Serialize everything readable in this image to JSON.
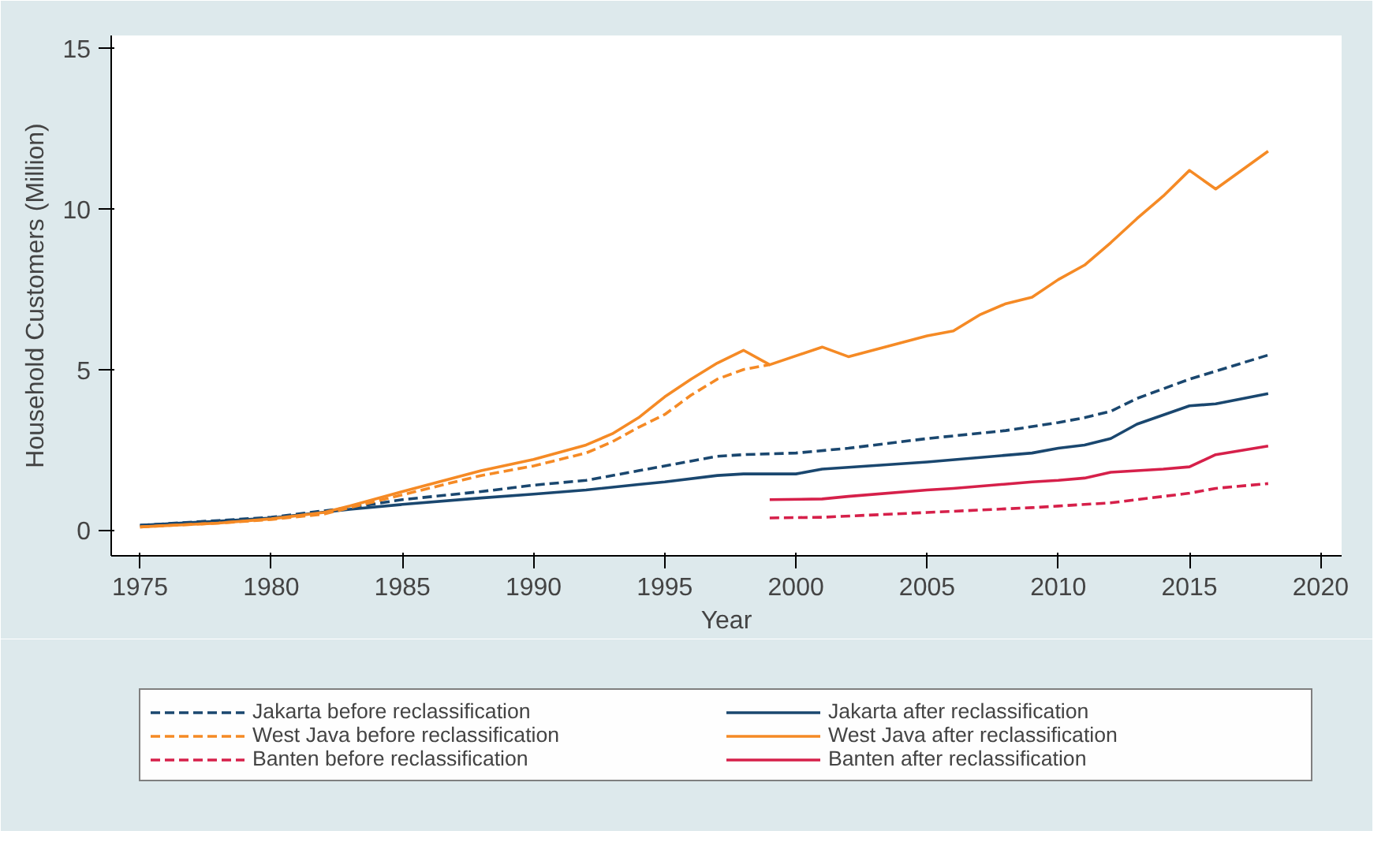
{
  "chart_data": {
    "type": "line",
    "xlabel": "Year",
    "ylabel": "Household Customers (Million)",
    "xlim": [
      1973.9,
      2020.8
    ],
    "ylim": [
      -0.8,
      15.4
    ],
    "xticks": [
      1975,
      1980,
      1985,
      1990,
      1995,
      2000,
      2005,
      2010,
      2015,
      2020
    ],
    "yticks": [
      0,
      5,
      10,
      15
    ],
    "grid": false,
    "legend": "bottom",
    "series": [
      {
        "name": "Jakarta before reclassification",
        "color": "#1a476f",
        "line_style": "dashed",
        "x": [
          1975,
          1978,
          1980,
          1983,
          1985,
          1988,
          1990,
          1992,
          1994,
          1995,
          1997,
          1998,
          2000,
          2002,
          2005,
          2008,
          2010,
          2011,
          2012,
          2013,
          2015,
          2016,
          2018
        ],
        "values": [
          0.15,
          0.3,
          0.4,
          0.7,
          0.95,
          1.2,
          1.4,
          1.55,
          1.85,
          2.0,
          2.3,
          2.35,
          2.4,
          2.55,
          2.85,
          3.1,
          3.35,
          3.5,
          3.7,
          4.1,
          4.7,
          4.95,
          5.45
        ]
      },
      {
        "name": "Jakarta after reclassification",
        "color": "#1a476f",
        "line_style": "solid",
        "x": [
          1975,
          1978,
          1980,
          1983,
          1985,
          1988,
          1990,
          1992,
          1994,
          1995,
          1997,
          1998,
          2000,
          2001,
          2005,
          2009,
          2010,
          2011,
          2012,
          2013,
          2015,
          2016,
          2018
        ],
        "values": [
          0.15,
          0.28,
          0.38,
          0.65,
          0.8,
          1.0,
          1.12,
          1.25,
          1.42,
          1.5,
          1.7,
          1.75,
          1.75,
          1.9,
          2.12,
          2.4,
          2.55,
          2.65,
          2.85,
          3.3,
          3.87,
          3.93,
          4.25
        ]
      },
      {
        "name": "West Java before reclassification",
        "color": "#f58a25",
        "line_style": "dashed",
        "x": [
          1975,
          1978,
          1980,
          1982,
          1983,
          1985,
          1988,
          1990,
          1992,
          1993,
          1994,
          1995,
          1996,
          1997,
          1998,
          1999
        ],
        "values": [
          0.1,
          0.22,
          0.33,
          0.5,
          0.7,
          1.1,
          1.7,
          2.0,
          2.4,
          2.75,
          3.2,
          3.6,
          4.2,
          4.7,
          5.0,
          5.15
        ]
      },
      {
        "name": "West Java after reclassification",
        "color": "#f58a25",
        "line_style": "solid",
        "x": [
          1975,
          1978,
          1980,
          1982,
          1983,
          1985,
          1988,
          1990,
          1992,
          1993,
          1994,
          1995,
          1996,
          1997,
          1998,
          1999,
          2001,
          2002,
          2005,
          2006,
          2007,
          2008,
          2009,
          2010,
          2011,
          2012,
          2013,
          2014,
          2015,
          2016,
          2018
        ],
        "values": [
          0.1,
          0.22,
          0.35,
          0.55,
          0.75,
          1.2,
          1.85,
          2.2,
          2.65,
          3.0,
          3.5,
          4.15,
          4.7,
          5.2,
          5.6,
          5.15,
          5.7,
          5.4,
          6.05,
          6.2,
          6.7,
          7.05,
          7.25,
          7.8,
          8.25,
          8.95,
          9.7,
          10.4,
          11.2,
          10.62,
          11.8
        ]
      },
      {
        "name": "Banten before reclassification",
        "color": "#d6204a",
        "line_style": "dashed",
        "x": [
          1999,
          2001,
          2005,
          2009,
          2010,
          2012,
          2015,
          2016,
          2018
        ],
        "values": [
          0.38,
          0.4,
          0.55,
          0.7,
          0.75,
          0.85,
          1.15,
          1.3,
          1.45
        ]
      },
      {
        "name": "Banten after reclassification",
        "color": "#d6204a",
        "line_style": "solid",
        "x": [
          1999,
          2001,
          2002,
          2005,
          2006,
          2009,
          2010,
          2011,
          2012,
          2014,
          2015,
          2016,
          2018
        ],
        "values": [
          0.95,
          0.97,
          1.05,
          1.25,
          1.3,
          1.5,
          1.55,
          1.62,
          1.8,
          1.9,
          1.97,
          2.35,
          2.62
        ]
      }
    ]
  }
}
